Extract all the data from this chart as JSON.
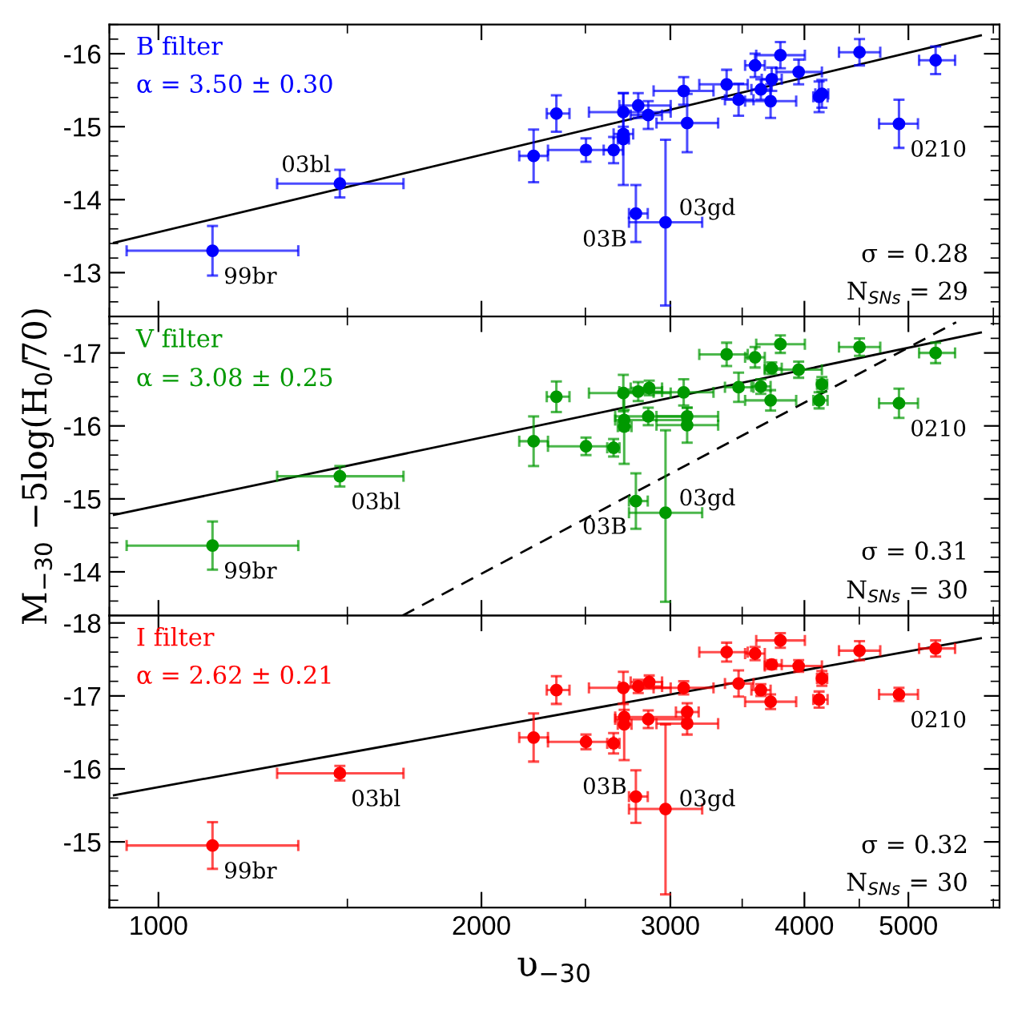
{
  "chart_data": [
    {
      "type": "scatter",
      "log": "x",
      "xlim": [
        900,
        6080
      ],
      "xticks": [
        1000,
        2000,
        3000,
        4000,
        5000
      ],
      "ylim": [
        -12.4,
        -16.4
      ],
      "yticks": [
        -16,
        -15,
        -14,
        -13
      ],
      "tick_labels": "y",
      "grid": false,
      "legend": false,
      "series": [
        {
          "color": "#0000ff",
          "marker": "circle",
          "x": [
            1123,
            1476,
            2237,
            2349,
            2503,
            2656,
            2712,
            2712,
            2712,
            2800,
            2861,
            2786,
            2969,
            3087,
            3110,
            3385,
            3473,
            3598,
            3643,
            3729,
            3720,
            3799,
            3951,
            4128,
            4153,
            4502,
            4900,
            5301
          ],
          "values": [
            -13.3,
            -14.22,
            -14.6,
            -15.18,
            -14.68,
            -14.68,
            -15.2,
            -14.9,
            -14.83,
            -15.29,
            -15.16,
            -13.81,
            -13.69,
            -15.49,
            -15.05,
            -15.58,
            -15.37,
            -15.84,
            -15.51,
            -15.65,
            -15.35,
            -15.98,
            -15.75,
            -15.41,
            -15.45,
            -16.02,
            -15.04,
            -15.91
          ],
          "errors": [
            0.34,
            0.19,
            0.36,
            0.25,
            0.16,
            0.18,
            0.26,
            0.1,
            0.63,
            0.17,
            0.19,
            0.39,
            [
              -14.82,
              -12.55
            ],
            0.19,
            0.4,
            0.2,
            0.22,
            0.16,
            0.14,
            0.16,
            0.23,
            0.18,
            0.17,
            0.21,
            0.19,
            0.18,
            0.33,
            0.19
          ],
          "xerrors": [
            [
              934,
              1350
            ],
            [
              1290,
              1692
            ],
            [
              2169,
              2307
            ],
            [
              2301,
              2416
            ],
            [
              2307,
              2656
            ],
            [
              2600,
              2710
            ],
            [
              2519,
              3002
            ],
            [
              2656,
              2770
            ],
            [
              2680,
              2745
            ],
            [
              2689,
              3002
            ],
            [
              2755,
              2947
            ],
            [
              2745,
              2858
            ],
            [
              2745,
              3212
            ],
            [
              2894,
              3291
            ],
            [
              2912,
              3324
            ],
            [
              3192,
              3542
            ],
            [
              3373,
              3586
            ],
            [
              3522,
              3674
            ],
            [
              3570,
              3720
            ],
            [
              3650,
              3810
            ],
            [
              3522,
              3930
            ],
            [
              3607,
              4004
            ],
            [
              3766,
              4153
            ],
            [
              4077,
              4204
            ],
            [
              4095,
              4210
            ],
            [
              4308,
              4707
            ],
            [
              4695,
              5104
            ],
            [
              5116,
              5527
            ]
          ]
        },
        {
          "type": "line",
          "color": "#000000",
          "x": [
            909,
            5841
          ],
          "values": [
            -13.41,
            -16.25
          ]
        }
      ],
      "annotations": [
        "B filter",
        "α = 3.50 ± 0.30",
        "σ = 0.28",
        "N$_{SNs}$ = 29",
        {
          "text": "99br",
          "x": 1123,
          "y": -13.3
        },
        {
          "text": "03bl",
          "x": 1476,
          "y": -14.22
        },
        {
          "text": "03B",
          "x": 2786,
          "y": -13.81
        },
        {
          "text": "03gd",
          "x": 2969,
          "y": -13.69
        },
        {
          "text": "0210",
          "x": 4900,
          "y": -15.04
        }
      ]
    },
    {
      "type": "scatter",
      "log": "x",
      "xlim": [
        900,
        6080
      ],
      "xticks": [
        1000,
        2000,
        3000,
        4000,
        5000
      ],
      "ylim": [
        -13.4,
        -17.5
      ],
      "yticks": [
        -17,
        -16,
        -15,
        -14
      ],
      "tick_labels": "y",
      "grid": false,
      "legend": false,
      "ylabel": "M$_{−30}$ −5log(H$_{0}$/70)",
      "series": [
        {
          "color": "#009900",
          "marker": "circle",
          "x": [
            1123,
            1476,
            2237,
            2349,
            2503,
            2656,
            2712,
            2717,
            2717,
            2800,
            2867,
            2861,
            2786,
            2969,
            3087,
            3110,
            3110,
            3385,
            3473,
            3598,
            3643,
            3729,
            3720,
            3799,
            3951,
            4128,
            4153,
            4502,
            4900,
            5301
          ],
          "values": [
            -14.36,
            -15.31,
            -15.79,
            -16.4,
            -15.72,
            -15.7,
            -16.45,
            -16.08,
            -15.99,
            -16.47,
            -16.52,
            -16.13,
            -14.97,
            -14.81,
            -16.46,
            -16.13,
            -16.01,
            -16.98,
            -16.53,
            -16.94,
            -16.54,
            -16.79,
            -16.35,
            -17.12,
            -16.77,
            -16.35,
            -16.57,
            -17.08,
            -16.31,
            -17.0
          ],
          "errors": [
            0.33,
            0.14,
            0.34,
            0.21,
            0.12,
            0.12,
            0.25,
            0.14,
            0.51,
            0.13,
            0.1,
            0.12,
            0.38,
            [
              -15.94,
              -13.59
            ],
            0.18,
            0.12,
            0.24,
            0.16,
            0.2,
            0.14,
            0.1,
            0.08,
            0.14,
            0.12,
            0.11,
            0.11,
            0.1,
            0.12,
            0.2,
            0.14
          ],
          "xerrors": [
            [
              934,
              1350
            ],
            [
              1290,
              1692
            ],
            [
              2169,
              2307
            ],
            [
              2301,
              2416
            ],
            [
              2307,
              2656
            ],
            [
              2620,
              2690
            ],
            [
              2519,
              3002
            ],
            [
              2665,
              3080
            ],
            [
              2680,
              2760
            ],
            [
              2689,
              2947
            ],
            [
              2755,
              2947
            ],
            [
              2665,
              3133
            ],
            [
              2745,
              2858
            ],
            [
              2745,
              3212
            ],
            [
              2894,
              3291
            ],
            [
              2912,
              3324
            ],
            [
              2912,
              3324
            ],
            [
              3192,
              3542
            ],
            [
              3373,
              3586
            ],
            [
              3522,
              3674
            ],
            [
              3570,
              3720
            ],
            [
              3674,
              3810
            ],
            [
              3522,
              3930
            ],
            [
              3607,
              4004
            ],
            [
              3674,
              4153
            ],
            [
              4077,
              4204
            ],
            [
              4110,
              4200
            ],
            [
              4308,
              4707
            ],
            [
              4695,
              5104
            ],
            [
              5116,
              5527
            ]
          ]
        },
        {
          "type": "line",
          "color": "#000000",
          "x": [
            909,
            5841
          ],
          "values": [
            -14.78,
            -17.28
          ]
        },
        {
          "type": "line",
          "color": "#000000",
          "line_style": "dashed",
          "x": [
            1688,
            5540
          ],
          "values": [
            -13.4,
            -17.42
          ]
        }
      ],
      "annotations": [
        "V filter",
        "α = 3.08 ± 0.25",
        "σ = 0.31",
        "N$_{SNs}$ = 30",
        {
          "text": "99br",
          "x": 1123,
          "y": -14.36
        },
        {
          "text": "03bl",
          "x": 1476,
          "y": -15.31
        },
        {
          "text": "03B",
          "x": 2786,
          "y": -14.97
        },
        {
          "text": "03gd",
          "x": 2969,
          "y": -14.81
        },
        {
          "text": "0210",
          "x": 4900,
          "y": -16.31
        }
      ]
    },
    {
      "type": "scatter",
      "log": "x",
      "xlim": [
        900,
        6080
      ],
      "xticks": [
        1000,
        2000,
        3000,
        4000,
        5000
      ],
      "ylim": [
        -14.1,
        -18.1
      ],
      "yticks": [
        -18,
        -17,
        -16,
        -15
      ],
      "grid": false,
      "legend": false,
      "xlabel": "υ$_{−30}$",
      "series": [
        {
          "color": "#ff0000",
          "marker": "circle",
          "x": [
            1123,
            1476,
            2237,
            2349,
            2503,
            2656,
            2712,
            2717,
            2717,
            2800,
            2867,
            2861,
            2786,
            2969,
            3087,
            3110,
            3110,
            3385,
            3473,
            3598,
            3643,
            3729,
            3720,
            3799,
            3951,
            4128,
            4153,
            4502,
            4900,
            5301
          ],
          "values": [
            -14.95,
            -15.94,
            -16.43,
            -17.08,
            -16.37,
            -16.35,
            -17.11,
            -16.71,
            -16.61,
            -17.13,
            -17.19,
            -16.68,
            -15.62,
            -15.45,
            -17.11,
            -16.78,
            -16.62,
            -17.6,
            -17.17,
            -17.58,
            -17.08,
            -17.43,
            -16.92,
            -17.76,
            -17.41,
            -16.95,
            -17.24,
            -17.62,
            -17.02,
            -17.65
          ],
          "errors": [
            0.32,
            0.1,
            0.33,
            0.19,
            0.1,
            0.14,
            0.22,
            0.1,
            0.49,
            0.09,
            0.09,
            0.12,
            0.36,
            [
              -16.61,
              -14.28
            ],
            0.09,
            0.12,
            0.15,
            0.13,
            0.18,
            0.09,
            0.08,
            0.06,
            0.1,
            0.1,
            0.08,
            0.11,
            0.1,
            0.13,
            0.09,
            0.11
          ],
          "xerrors": [
            [
              934,
              1350
            ],
            [
              1290,
              1692
            ],
            [
              2169,
              2307
            ],
            [
              2301,
              2416
            ],
            [
              2307,
              2656
            ],
            [
              2620,
              2690
            ],
            [
              2519,
              3002
            ],
            [
              2665,
              3080
            ],
            [
              2680,
              2760
            ],
            [
              2689,
              2947
            ],
            [
              2755,
              2947
            ],
            [
              2665,
              3133
            ],
            [
              2745,
              2858
            ],
            [
              2745,
              3212
            ],
            [
              2894,
              3291
            ],
            [
              3036,
              3188
            ],
            [
              2912,
              3324
            ],
            [
              3192,
              3542
            ],
            [
              3373,
              3586
            ],
            [
              3522,
              3674
            ],
            [
              3570,
              3720
            ],
            [
              3674,
              3810
            ],
            [
              3522,
              3930
            ],
            [
              3607,
              4004
            ],
            [
              3674,
              4153
            ],
            [
              4077,
              4204
            ],
            [
              4110,
              4200
            ],
            [
              4308,
              4707
            ],
            [
              4695,
              5104
            ],
            [
              5116,
              5527
            ]
          ]
        },
        {
          "type": "line",
          "color": "#000000",
          "x": [
            909,
            5841
          ],
          "values": [
            -15.64,
            -17.79
          ]
        }
      ],
      "annotations": [
        "I filter",
        "α = 2.62 ± 0.21",
        "σ = 0.32",
        "N$_{SNs}$ = 30",
        {
          "text": "99br",
          "x": 1123,
          "y": -14.95
        },
        {
          "text": "03bl",
          "x": 1476,
          "y": -15.94
        },
        {
          "text": "03B",
          "x": 2786,
          "y": -15.62
        },
        {
          "text": "03gd",
          "x": 2969,
          "y": -15.45
        },
        {
          "text": "0210",
          "x": 4900,
          "y": -17.02
        }
      ]
    }
  ]
}
